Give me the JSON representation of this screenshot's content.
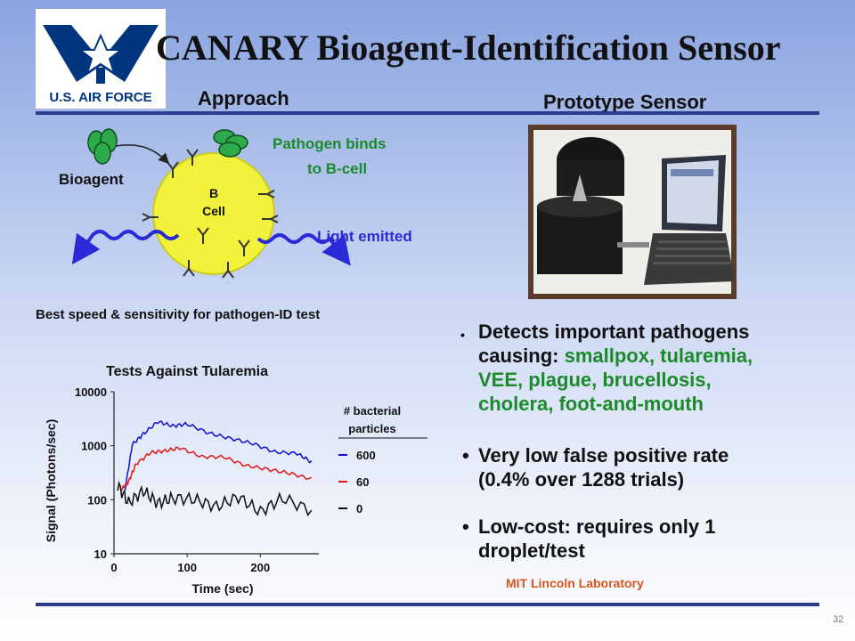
{
  "header": {
    "logo_text": "U.S. AIR FORCE",
    "title": "CANARY Bioagent-Identification Sensor"
  },
  "approach": {
    "heading": "Approach",
    "bioagent_label": "Bioagent",
    "cell_label_line1": "B",
    "cell_label_line2": "Cell",
    "binds_line1": "Pathogen binds",
    "binds_line2": "to B-cell",
    "light_label": "Light emitted",
    "caption": "Best speed & sensitivity for pathogen-ID test"
  },
  "prototype": {
    "heading": "Prototype Sensor"
  },
  "bullets": {
    "b1_line1": "Detects important pathogens",
    "b1_line2_prefix": "causing: ",
    "b1_line2_green": "smallpox, tularemia,",
    "b1_line3_green": "VEE, plague, brucellosis,",
    "b1_line4_green": "cholera, foot-and-mouth",
    "b2_line1": "Very low false positive rate",
    "b2_line2": "(0.4% over 1288 trials)",
    "b3_line1": "Low-cost: requires only 1",
    "b3_line2": "droplet/test"
  },
  "footer": {
    "lab": "MIT Lincoln Laboratory",
    "page_number": "32"
  },
  "colors": {
    "rule": "#2c3d8f",
    "cell": "#f2f23c",
    "wave": "#2a2ad6",
    "series_600": "#1010d0",
    "series_60": "#e01818",
    "series_0": "#111111",
    "green_text": "#1a8a2a",
    "orange_text": "#d8541d"
  },
  "chart_data": {
    "type": "line",
    "title": "Tests Against Tularemia",
    "xlabel": "Time (sec)",
    "ylabel": "Signal (Photons/sec)",
    "yscale": "log",
    "ylim": [
      10,
      10000
    ],
    "xlim": [
      0,
      280
    ],
    "x_ticks": [
      "0",
      "100",
      "200"
    ],
    "y_ticks": [
      "10",
      "100",
      "1000",
      "10000"
    ],
    "legend_title_line1": "# bacterial",
    "legend_title_line2": "particles",
    "series": [
      {
        "name": "600",
        "color": "#1010d0",
        "points": [
          [
            15,
            150
          ],
          [
            25,
            1000
          ],
          [
            40,
            1800
          ],
          [
            60,
            2500
          ],
          [
            80,
            2600
          ],
          [
            100,
            2300
          ],
          [
            130,
            1800
          ],
          [
            160,
            1350
          ],
          [
            190,
            1050
          ],
          [
            220,
            830
          ],
          [
            250,
            650
          ],
          [
            270,
            560
          ]
        ]
      },
      {
        "name": "60",
        "color": "#e01818",
        "points": [
          [
            10,
            140
          ],
          [
            20,
            230
          ],
          [
            30,
            450
          ],
          [
            50,
            720
          ],
          [
            70,
            870
          ],
          [
            90,
            820
          ],
          [
            120,
            700
          ],
          [
            150,
            560
          ],
          [
            180,
            460
          ],
          [
            210,
            360
          ],
          [
            240,
            300
          ],
          [
            270,
            260
          ]
        ]
      },
      {
        "name": "0",
        "color": "#111111",
        "points": [
          [
            5,
            140
          ],
          [
            20,
            120
          ],
          [
            40,
            110
          ],
          [
            60,
            105
          ],
          [
            80,
            100
          ],
          [
            110,
            95
          ],
          [
            140,
            90
          ],
          [
            170,
            85
          ],
          [
            200,
            82
          ],
          [
            230,
            80
          ],
          [
            270,
            78
          ]
        ]
      }
    ]
  }
}
